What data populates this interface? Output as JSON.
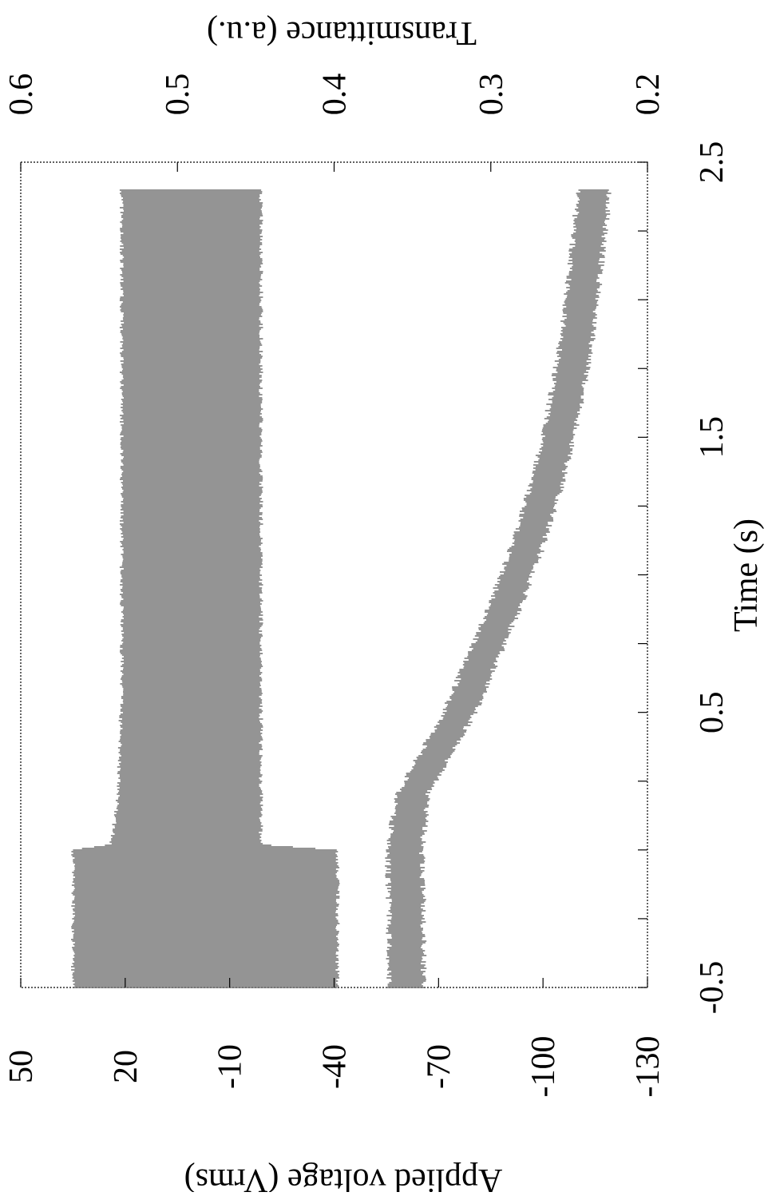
{
  "chart_data": {
    "type": "line",
    "orientation": "rotated-90-clockwise",
    "xlabel": "Time (s)",
    "ylabel_left": "Applied voltage (Vrms)",
    "ylabel_right": "Transmittance (a.u.)",
    "xlim": [
      -0.5,
      2.5
    ],
    "ylim_left": [
      -130,
      50
    ],
    "ylim_right": [
      0.2,
      0.6
    ],
    "x_tick_labels": [
      "-0.5",
      "0.5",
      "1.5",
      "2.5"
    ],
    "x_ticks": [
      -0.5,
      0.5,
      1.5,
      2.5
    ],
    "x_minor_ticks": [
      -0.25,
      0,
      0.25,
      0.75,
      1.0,
      1.25,
      1.75,
      2.0,
      2.25
    ],
    "y_left_ticks": [
      50,
      20,
      -10,
      -40,
      -70,
      -100,
      -130
    ],
    "y_left_tick_labels": [
      "50",
      "20",
      "-10",
      "-40",
      "-70",
      "-100",
      "-130"
    ],
    "y_right_ticks": [
      0.6,
      0.5,
      0.4,
      0.3,
      0.2
    ],
    "y_right_tick_labels": [
      "0.6",
      "0.5",
      "0.4",
      "0.3",
      "0.2"
    ],
    "series": [
      {
        "axis": "left",
        "style": "oscillating-band",
        "x": [
          -0.5,
          -0.3,
          0.0,
          0.02,
          0.2,
          0.4,
          0.6,
          0.8,
          1.0,
          1.2,
          1.4,
          1.6,
          1.8,
          2.0,
          2.2,
          2.4
        ],
        "upper": [
          35.0,
          35.0,
          35.0,
          24.0,
          22.0,
          21.5,
          21.0,
          21.0,
          21.0,
          21.0,
          21.0,
          21.0,
          21.0,
          21.0,
          21.0,
          21.0
        ],
        "lower": [
          -41.0,
          -41.0,
          -41.0,
          -19.0,
          -19.0,
          -19.0,
          -19.0,
          -19.0,
          -19.0,
          -19.0,
          -19.0,
          -19.0,
          -19.0,
          -19.0,
          -19.0,
          -19.0
        ]
      },
      {
        "axis": "right",
        "style": "noisy-band",
        "x": [
          -0.5,
          -0.2,
          0.0,
          0.2,
          0.35,
          0.5,
          0.7,
          0.9,
          1.1,
          1.3,
          1.5,
          1.7,
          1.9,
          2.1,
          2.3,
          2.4
        ],
        "upper": [
          0.365,
          0.365,
          0.366,
          0.36,
          0.345,
          0.33,
          0.315,
          0.3,
          0.287,
          0.276,
          0.267,
          0.26,
          0.254,
          0.25,
          0.246,
          0.244
        ],
        "lower": [
          0.343,
          0.343,
          0.344,
          0.34,
          0.325,
          0.31,
          0.295,
          0.28,
          0.267,
          0.256,
          0.247,
          0.24,
          0.234,
          0.23,
          0.226,
          0.224
        ]
      }
    ]
  }
}
